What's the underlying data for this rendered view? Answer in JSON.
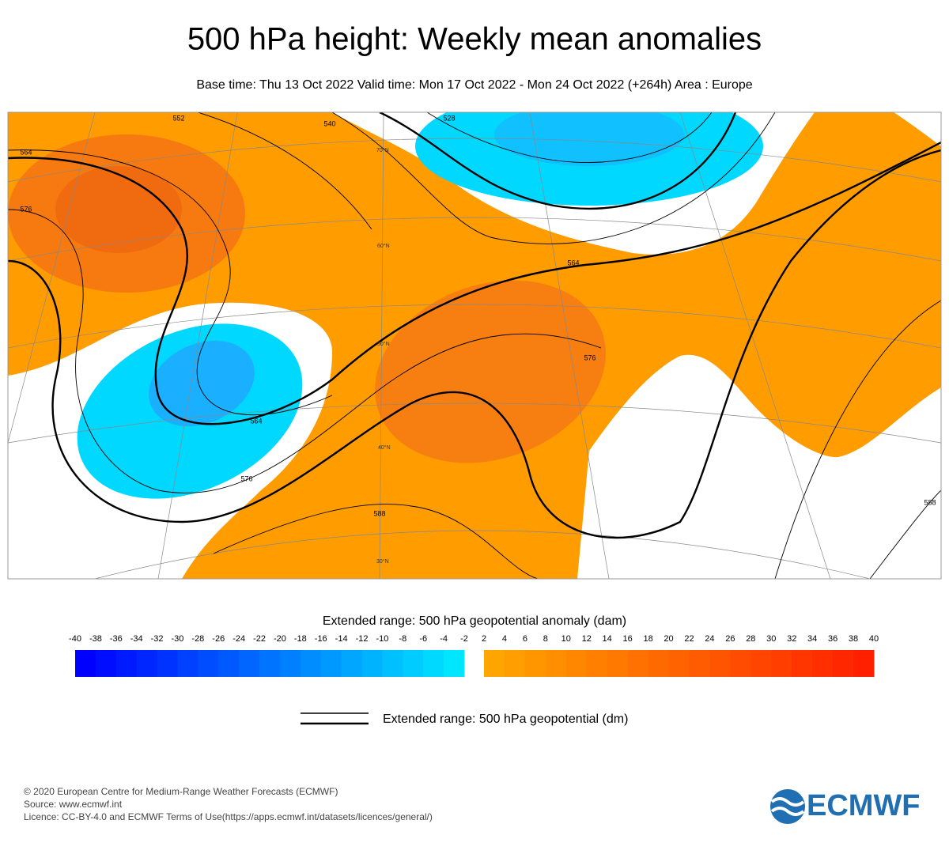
{
  "header": {
    "title": "500 hPa height: Weekly mean anomalies",
    "subtitle": "Base time: Thu 13 Oct 2022 Valid time: Mon 17 Oct 2022 - Mon 24 Oct 2022 (+264h) Area : Europe"
  },
  "map": {
    "contour_labels": [
      "564",
      "552",
      "540",
      "528",
      "576",
      "564",
      "564",
      "576",
      "588",
      "576",
      "588"
    ],
    "latitude_labels": [
      "70°N",
      "60°N",
      "50°N",
      "40°N",
      "30°N"
    ]
  },
  "colorbar": {
    "title": "Extended range: 500 hPa geopotential anomaly (dam)",
    "negative_ticks": [
      "-40",
      "-38",
      "-36",
      "-34",
      "-32",
      "-30",
      "-28",
      "-26",
      "-24",
      "-22",
      "-20",
      "-18",
      "-16",
      "-14",
      "-12",
      "-10",
      "-8",
      "-6",
      "-4",
      "-2"
    ],
    "positive_ticks": [
      "2",
      "4",
      "6",
      "8",
      "10",
      "12",
      "14",
      "16",
      "18",
      "20",
      "22",
      "24",
      "26",
      "28",
      "30",
      "32",
      "34",
      "36",
      "38",
      "40"
    ]
  },
  "legend": {
    "label": "Extended range: 500 hPa geopotential (dm)"
  },
  "footer": {
    "lines": [
      "© 2020 European Centre for Medium-Range Weather Forecasts (ECMWF)",
      "Source: www.ecmwf.int",
      "Licence: CC-BY-4.0 and ECMWF Terms of Use(https://apps.ecmwf.int/datasets/licences/general/)"
    ],
    "logo": "ECMWF"
  }
}
